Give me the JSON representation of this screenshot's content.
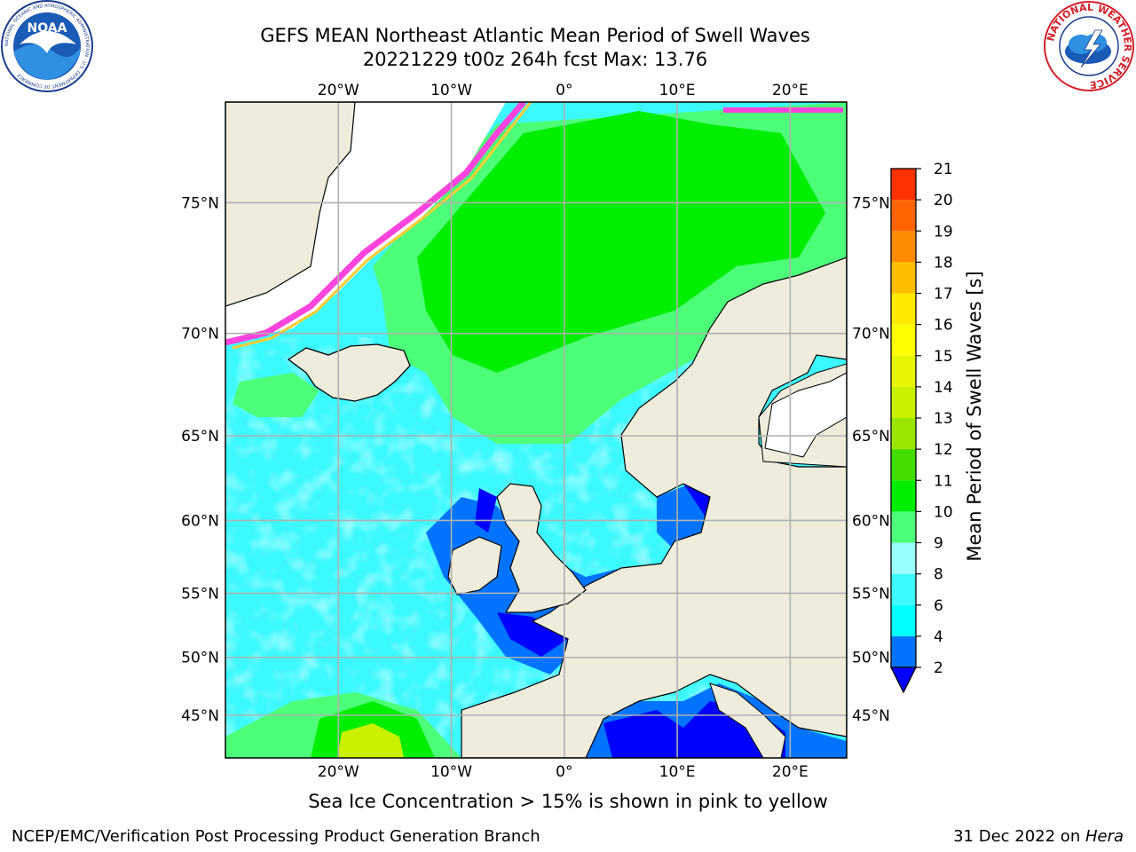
{
  "title": {
    "line1": "GEFS MEAN Northeast Atlantic Mean Period of Swell Waves",
    "line2": "20221229 t00z 264h fcst   Max: 13.76"
  },
  "map": {
    "lon_range": [
      -30,
      25
    ],
    "lat_range": [
      41,
      78
    ],
    "lon_ticks": [
      -20,
      -10,
      0,
      10,
      20
    ],
    "lon_tick_labels": [
      "20°W",
      "10°W",
      "0°",
      "10°E",
      "20°E"
    ],
    "lat_ticks": [
      45,
      50,
      55,
      60,
      65,
      70,
      75
    ],
    "lat_tick_labels": [
      "45°N",
      "50°N",
      "55°N",
      "60°N",
      "65°N",
      "70°N",
      "75°N"
    ],
    "gridlines": true,
    "land_color": "#efecdc",
    "coast_color": "#000000"
  },
  "colorbar": {
    "label": "Mean Period of Swell Waves [s]",
    "ticks": [
      "2",
      "4",
      "6",
      "8",
      "9",
      "10",
      "11",
      "12",
      "13",
      "14",
      "15",
      "16",
      "17",
      "18",
      "19",
      "20",
      "21"
    ],
    "colors": [
      "#0074ff",
      "#00ffff",
      "#3cf9ff",
      "#9bffff",
      "#4dff78",
      "#00ee00",
      "#42dd00",
      "#9be600",
      "#c8f200",
      "#e6f500",
      "#ffff00",
      "#ffea00",
      "#ffbf00",
      "#ff8c00",
      "#ff6400",
      "#ff3200"
    ],
    "underflow_color": "#0000ff"
  },
  "caption": "Sea Ice Concentration > 15% is shown in pink to yellow",
  "footer": {
    "left": "NCEP/EMC/Verification Post Processing Product Generation Branch",
    "date": "31 Dec 2022 on ",
    "machine": "Hera"
  },
  "logos": {
    "noaa_text": "NOAA",
    "noaa_ring": "NATIONAL OCEANIC AND ATMOSPHERIC ADMINISTRATION · U.S. DEPARTMENT OF COMMERCE",
    "nws_ring": "NATIONAL WEATHER SERVICE"
  }
}
